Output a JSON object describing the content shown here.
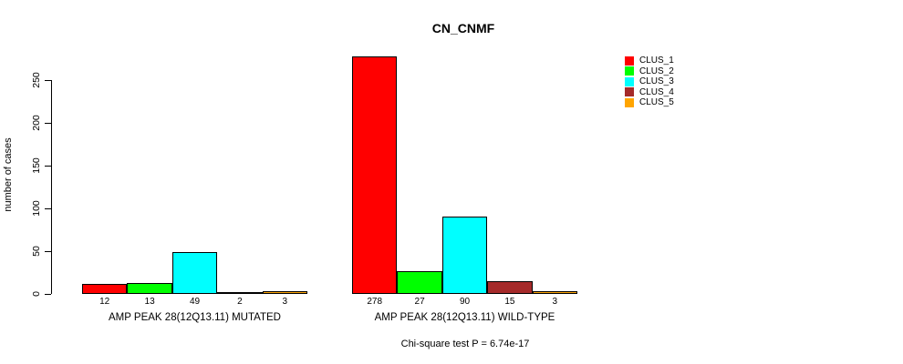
{
  "chart_data": {
    "type": "bar",
    "title": "CN_CNMF",
    "ylabel": "number of cases",
    "xlabel": "",
    "ylim": [
      0,
      250
    ],
    "yticks": [
      0,
      50,
      100,
      150,
      200,
      250
    ],
    "grid": false,
    "legend_position": "top-right",
    "bar_value_labels": true,
    "categories": [
      "AMP PEAK 28(12Q13.11) MUTATED",
      "AMP PEAK 28(12Q13.11) WILD-TYPE"
    ],
    "series": [
      {
        "name": "CLUS_1",
        "color": "#FF0000",
        "values": [
          12,
          278
        ]
      },
      {
        "name": "CLUS_2",
        "color": "#00FF00",
        "values": [
          13,
          27
        ]
      },
      {
        "name": "CLUS_3",
        "color": "#00FFFF",
        "values": [
          49,
          90
        ]
      },
      {
        "name": "CLUS_4",
        "color": "#A52A2A",
        "values": [
          2,
          15
        ]
      },
      {
        "name": "CLUS_5",
        "color": "#FFA500",
        "values": [
          3,
          3
        ]
      }
    ],
    "footnote": "Chi-square test P = 6.74e-17",
    "axis_color": "#000000",
    "bar_border_color": "#000000"
  }
}
